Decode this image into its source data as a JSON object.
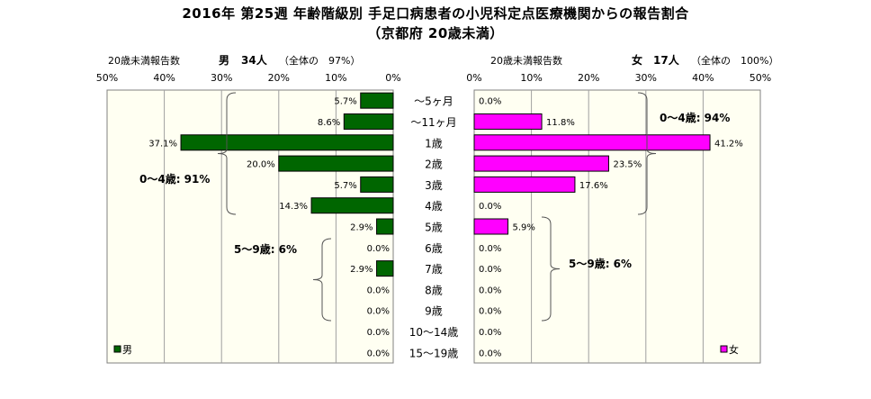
{
  "chart_data": {
    "type": "bar",
    "title_lines": [
      "2016年 第25週 年齢階級別 手足口病患者の小児科定点医療機関からの報告割合",
      "（京都府 20歳未満）"
    ],
    "categories": [
      "～5ヶ月",
      "～11ヶ月",
      "1歳",
      "2歳",
      "3歳",
      "4歳",
      "5歳",
      "6歳",
      "7歳",
      "8歳",
      "9歳",
      "10～14歳",
      "15～19歳"
    ],
    "series": [
      {
        "name": "男",
        "header": {
          "label": "20歳未満報告数",
          "sex": "男",
          "count": "34人",
          "share": "（全体の　97%）"
        },
        "values": [
          5.7,
          8.6,
          37.1,
          20.0,
          5.7,
          14.3,
          2.9,
          0.0,
          2.9,
          0.0,
          0.0,
          0.0,
          0.0
        ],
        "color": "#006600"
      },
      {
        "name": "女",
        "header": {
          "label": "20歳未満報告数",
          "sex": "女",
          "count": "17人",
          "share": "（全体の　100%）"
        },
        "values": [
          0.0,
          11.8,
          41.2,
          23.5,
          17.6,
          0.0,
          5.9,
          0.0,
          0.0,
          0.0,
          0.0,
          0.0,
          0.0
        ],
        "color": "#FF00FF"
      }
    ],
    "xlim": [
      0,
      50
    ],
    "ticks": [
      0,
      10,
      20,
      30,
      40,
      50
    ],
    "tick_suffix": "%",
    "value_suffix": "%",
    "grid": true,
    "legend_placement": "bottom-left (男), bottom-right (女)",
    "annotations": {
      "male_0_4": "0～4歳: 91%",
      "male_5_9": "5～9歳: 6%",
      "female_0_4": "0～4歳: 94%",
      "female_5_9": "5～9歳: 6%"
    }
  },
  "colors": {
    "plot_background": "#FFFFF2",
    "grid": "#A0A0A0",
    "male_bar": "#006600",
    "female_bar": "#FF00FF",
    "bar_outline": "#000000"
  }
}
